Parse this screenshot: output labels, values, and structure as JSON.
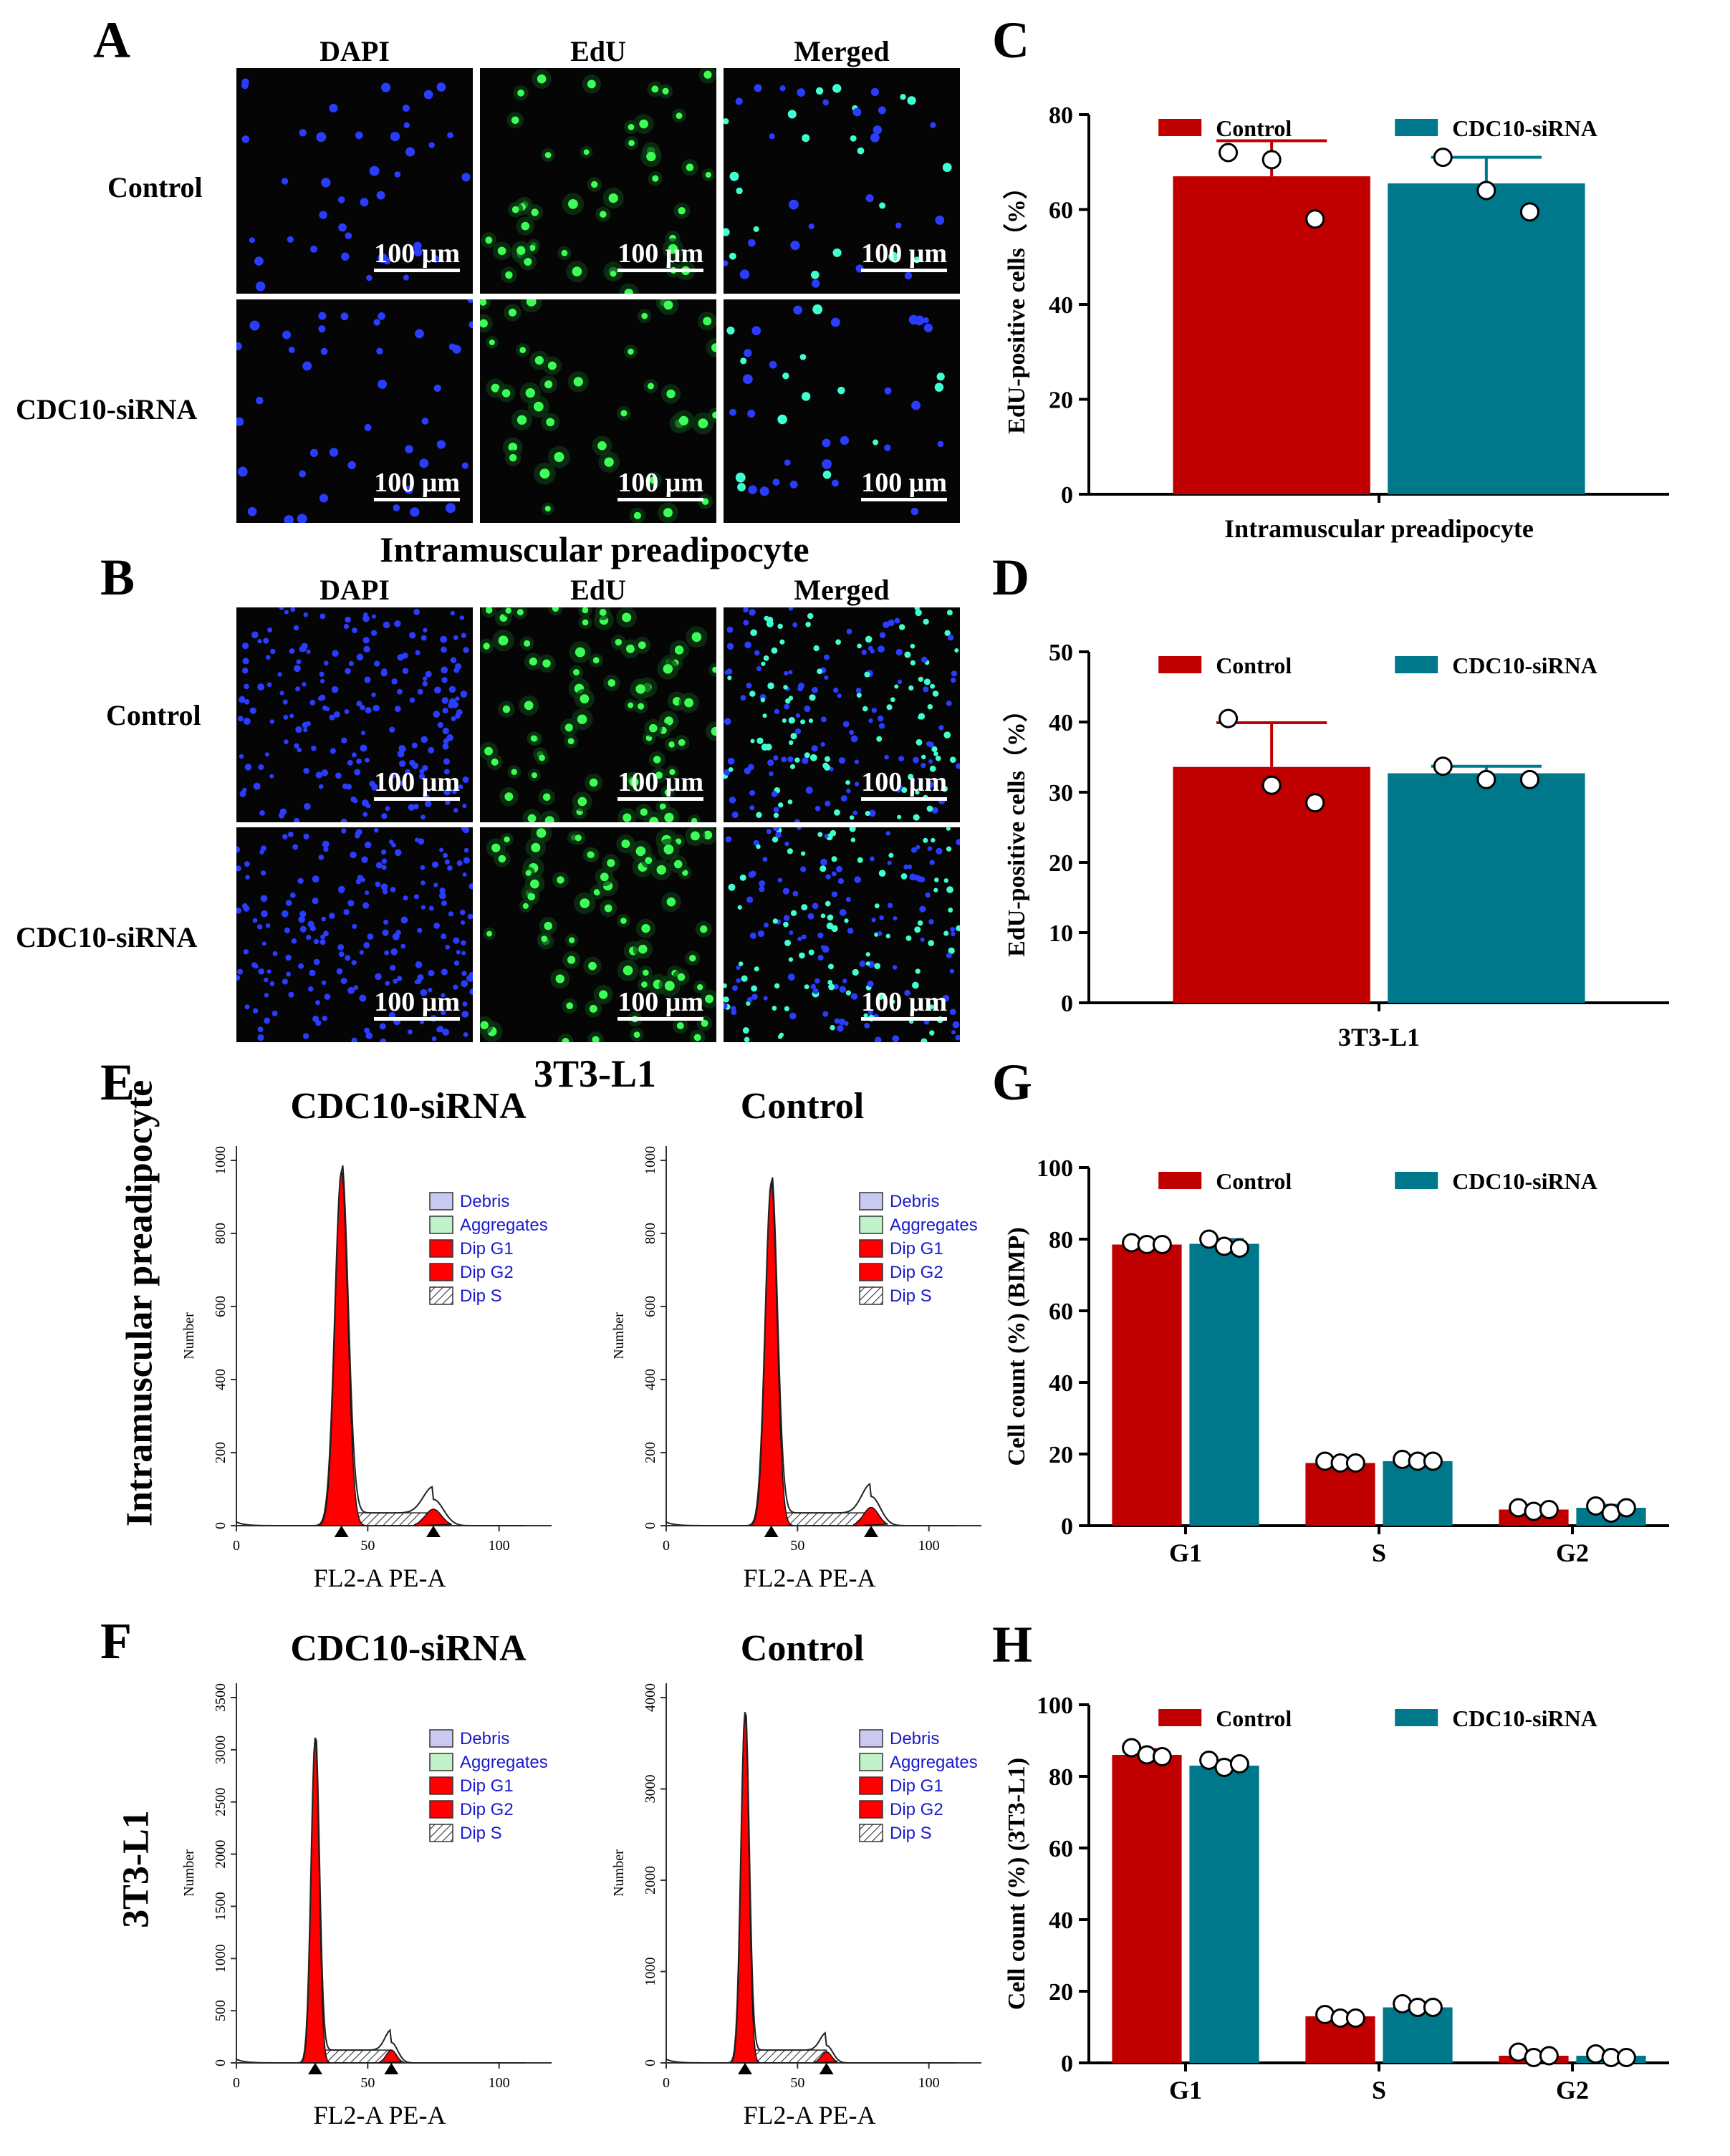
{
  "panel_letters": [
    "A",
    "B",
    "C",
    "D",
    "E",
    "F",
    "G",
    "H"
  ],
  "micro_columns": [
    "DAPI",
    "EdU",
    "Merged"
  ],
  "micro_rows": [
    "Control",
    "CDC10-siRNA"
  ],
  "scale_bar": "100 μm",
  "section_titles": {
    "ab_separator": "Intramuscular preadipocyte",
    "ef_separator": "3T3-L1"
  },
  "flow": {
    "E": {
      "side_label": "Intramuscular preadipocyte",
      "left_title": "CDC10-siRNA",
      "right_title": "Control",
      "left_yticks": [
        "0",
        "200",
        "400",
        "600",
        "800",
        "1000"
      ],
      "right_yticks": [
        "0",
        "200",
        "400",
        "600",
        "800",
        "1000"
      ],
      "xticks": [
        "0",
        "50",
        "100"
      ],
      "ylabel": "Number",
      "xlabel": "FL2-A PE-A"
    },
    "F": {
      "side_label": "3T3-L1",
      "left_title": "CDC10-siRNA",
      "right_title": "Control",
      "left_yticks": [
        "0",
        "500",
        "1000",
        "1500",
        "2000",
        "2500",
        "3000",
        "3500"
      ],
      "right_yticks": [
        "0",
        "1000",
        "2000",
        "3000",
        "4000"
      ],
      "xticks": [
        "0",
        "50",
        "100"
      ],
      "ylabel": "Number",
      "xlabel": "FL2-A PE-A"
    },
    "legend": [
      "Debris",
      "Aggregates",
      "Dip G1",
      "Dip G2",
      "Dip S"
    ],
    "legend_colors": [
      "#c9c9f2",
      "#bff2c9",
      "#ff0000",
      "#ff0000",
      "#ffffff"
    ]
  },
  "chart_data": [
    {
      "id": "C",
      "type": "bar",
      "title": "",
      "xlabel": "Intramuscular preadipocyte",
      "ylabel": "EdU-positive cells（%）",
      "ylim": [
        0,
        80
      ],
      "yticks": [
        0,
        20,
        40,
        60,
        80
      ],
      "categories": [
        ""
      ],
      "series": [
        {
          "name": "Control",
          "color": "#c00000",
          "values": [
            67
          ],
          "error": [
            7.5
          ],
          "points": [
            [
              72,
              70.5,
              58
            ]
          ]
        },
        {
          "name": "CDC10-siRNA",
          "color": "#00788c",
          "values": [
            65.5
          ],
          "error": [
            5.5
          ],
          "points": [
            [
              71,
              64,
              59.5
            ]
          ]
        }
      ]
    },
    {
      "id": "D",
      "type": "bar",
      "title": "",
      "xlabel": "3T3-L1",
      "ylabel": "EdU-positive cells（%）",
      "ylim": [
        0,
        50
      ],
      "yticks": [
        0,
        10,
        20,
        30,
        40,
        50
      ],
      "categories": [
        ""
      ],
      "series": [
        {
          "name": "Control",
          "color": "#c00000",
          "values": [
            33.6
          ],
          "error": [
            6.3
          ],
          "points": [
            [
              40.5,
              31,
              28.5
            ]
          ]
        },
        {
          "name": "CDC10-siRNA",
          "color": "#00788c",
          "values": [
            32.7
          ],
          "error": [
            1
          ],
          "points": [
            [
              33.7,
              31.8,
              31.8
            ]
          ]
        }
      ]
    },
    {
      "id": "G",
      "type": "bar",
      "title": "",
      "xlabel": "",
      "ylabel": "Cell count (%) (BIMP)",
      "ylim": [
        0,
        100
      ],
      "yticks": [
        0,
        20,
        40,
        60,
        80,
        100
      ],
      "categories": [
        "G1",
        "S",
        "G2"
      ],
      "series": [
        {
          "name": "Control",
          "color": "#c00000",
          "values": [
            78.5,
            17.5,
            4.5
          ],
          "error": [
            0.6,
            0.4,
            0.5
          ],
          "points": [
            [
              79,
              78.5,
              78.5
            ],
            [
              18,
              17.5,
              17.5
            ],
            [
              5,
              4,
              4.5
            ]
          ]
        },
        {
          "name": "CDC10-siRNA",
          "color": "#00788c",
          "values": [
            78.7,
            18,
            5
          ],
          "error": [
            1.2,
            0.4,
            0.7
          ],
          "points": [
            [
              80,
              78,
              77.5
            ],
            [
              18.5,
              18,
              18
            ],
            [
              5.5,
              3.5,
              5
            ]
          ]
        }
      ]
    },
    {
      "id": "H",
      "type": "bar",
      "title": "",
      "xlabel": "",
      "ylabel": "Cell count (%) (3T3-L1)",
      "ylim": [
        0,
        100
      ],
      "yticks": [
        0,
        20,
        40,
        60,
        80,
        100
      ],
      "categories": [
        "G1",
        "S",
        "G2"
      ],
      "series": [
        {
          "name": "Control",
          "color": "#c00000",
          "values": [
            86,
            13,
            2
          ],
          "error": [
            1.5,
            0.6,
            0.8
          ],
          "points": [
            [
              88,
              86,
              85.5
            ],
            [
              13.5,
              12.5,
              12.5
            ],
            [
              3,
              1.5,
              2
            ]
          ]
        },
        {
          "name": "CDC10-siRNA",
          "color": "#00788c",
          "values": [
            83,
            15.5,
            2
          ],
          "error": [
            1.3,
            0.5,
            0.6
          ],
          "points": [
            [
              84.5,
              82.5,
              83.5
            ],
            [
              16.5,
              15.5,
              15.5
            ],
            [
              2.5,
              1.5,
              1.5
            ]
          ]
        }
      ]
    }
  ]
}
